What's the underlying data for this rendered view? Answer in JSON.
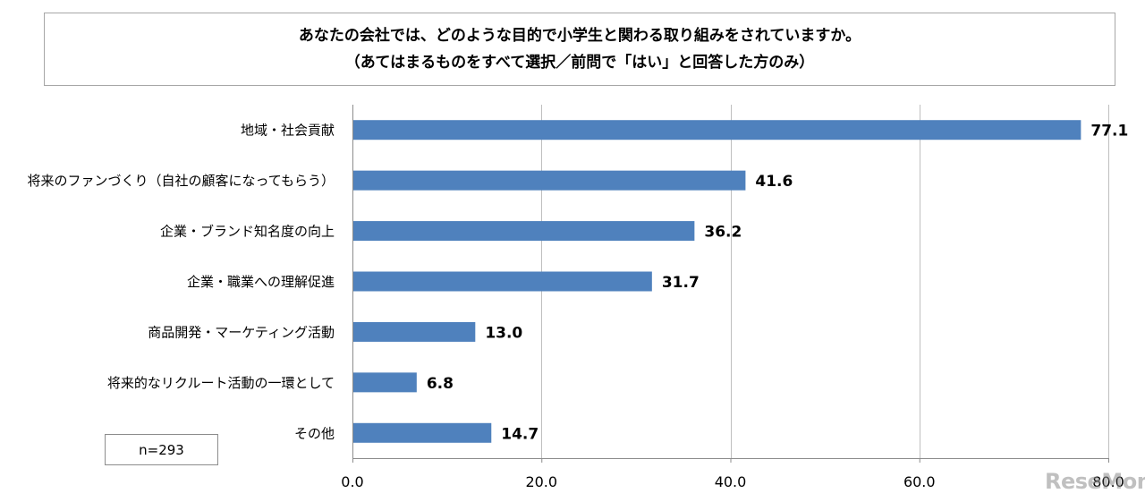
{
  "title": {
    "line1": "あなたの会社では、どのような目的で小学生と関わる取り組みをされていますか。",
    "line2": "（あてはまるものをすべて選択／前問で「はい」と回答した方のみ）"
  },
  "note": "n=293",
  "watermark": "ReseMom",
  "chart_data": {
    "type": "bar",
    "orientation": "horizontal",
    "categories": [
      "地域・社会貢献",
      "将来のファンづくり（自社の顧客になってもらう）",
      "企業・ブランド知名度の向上",
      "企業・職業への理解促進",
      "商品開発・マーケティング活動",
      "将来的なリクルート活動の一環として",
      "その他"
    ],
    "values": [
      77.1,
      41.6,
      36.2,
      31.7,
      13.0,
      6.8,
      14.7
    ],
    "value_labels": [
      "77.1",
      "41.6",
      "36.2",
      "31.7",
      "13.0",
      "6.8",
      "14.7"
    ],
    "xlim": [
      0,
      80
    ],
    "ticks": [
      "0.0",
      "20.0",
      "40.0",
      "60.0",
      "80.0"
    ],
    "tick_values": [
      0,
      20,
      40,
      60,
      80
    ],
    "grid": true,
    "bar_color": "#4f81bd",
    "grid_color": "#bfbfbf"
  }
}
